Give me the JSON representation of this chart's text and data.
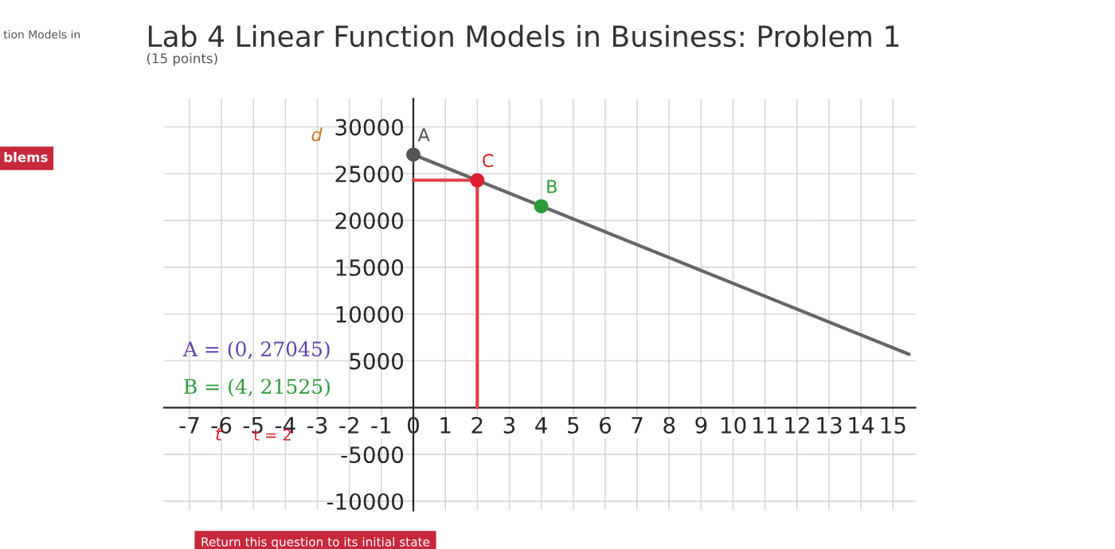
{
  "chart_data": {
    "type": "line",
    "title": "Lab 4 Linear Function Models in Business: Problem 1",
    "subtitle": "(15 points)",
    "xlim": [
      -7.8,
      15.7
    ],
    "ylim": [
      -11000,
      33000
    ],
    "xticks": [
      -7,
      -6,
      -5,
      -4,
      -3,
      -2,
      -1,
      0,
      1,
      2,
      3,
      4,
      5,
      6,
      7,
      8,
      9,
      10,
      11,
      12,
      13,
      14,
      15
    ],
    "yticks": [
      -10000,
      -5000,
      5000,
      10000,
      15000,
      20000,
      25000,
      30000
    ],
    "grid": true,
    "series": [
      {
        "type": "line",
        "color": "#666666",
        "x": [
          0,
          15.5
        ],
        "values": [
          27045,
          5700
        ]
      },
      {
        "type": "line",
        "color": "#e0404a",
        "x": [
          0,
          2,
          2
        ],
        "values": [
          24300,
          24300,
          0
        ]
      },
      {
        "type": "scatter",
        "name": "A",
        "color": "#555555",
        "x": [
          0
        ],
        "values": [
          27045
        ]
      },
      {
        "type": "scatter",
        "name": "C",
        "color": "#e02030",
        "x": [
          2
        ],
        "values": [
          24300
        ]
      },
      {
        "type": "scatter",
        "name": "B",
        "color": "#2e9a3a",
        "x": [
          4
        ],
        "values": [
          21525
        ]
      }
    ],
    "annotations": [
      "d",
      "A = (0, 27045)",
      "B = (4, 21525)",
      "t",
      "t = 2",
      "Return this question to its initial state",
      "tion Models in",
      "blems"
    ]
  }
}
